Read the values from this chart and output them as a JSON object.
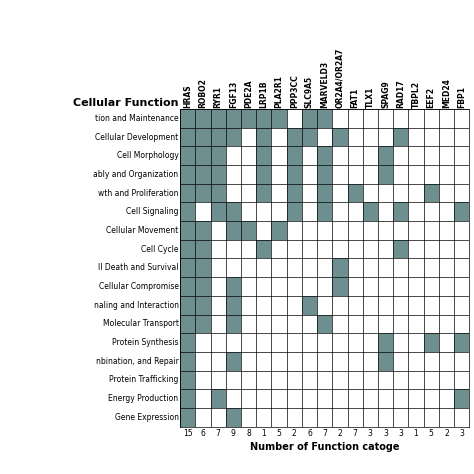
{
  "genes": [
    "HRAS",
    "ROBO2",
    "RYR1",
    "FGF13",
    "PDE2A",
    "LRP1B",
    "PLA2R1",
    "PPP3CC",
    "SLC9A5",
    "MARVELD3",
    "OR2A4/OR2A7",
    "FAT1",
    "TLX1",
    "SPAG9",
    "RAD17",
    "TBPL2",
    "EEF2",
    "MED24",
    "FBP1"
  ],
  "gene_counts": [
    "15",
    "6",
    "7",
    "9",
    "8",
    "1",
    "5",
    "2",
    "6",
    "7",
    "2",
    "7",
    "3",
    "3",
    "3",
    "1",
    "5",
    "2",
    "3"
  ],
  "function_labels": [
    "tion and Maintenance",
    "Cellular Development",
    "Cell Morphology",
    "ably and Organization",
    "wth and Proliferation",
    "Cell Signaling",
    "Cellular Movement",
    "Cell Cycle",
    "ll Death and Survival",
    "Cellular Compromise",
    "naling and Interaction",
    "Molecular Transport",
    "Protein Synthesis",
    "nbination, and Repair",
    "Protein Trafficking",
    "Energy Production",
    "Gene Expression"
  ],
  "filled": [
    [
      1,
      1,
      1,
      1,
      1,
      1,
      1,
      0,
      1,
      1,
      0,
      0,
      0,
      0,
      0,
      0,
      0,
      0,
      0
    ],
    [
      1,
      1,
      1,
      1,
      0,
      1,
      0,
      1,
      1,
      0,
      1,
      0,
      0,
      0,
      1,
      0,
      0,
      0,
      0
    ],
    [
      1,
      1,
      1,
      0,
      0,
      1,
      0,
      1,
      0,
      1,
      0,
      0,
      0,
      1,
      0,
      0,
      0,
      0,
      0
    ],
    [
      1,
      1,
      1,
      0,
      0,
      1,
      0,
      1,
      0,
      1,
      0,
      0,
      0,
      1,
      0,
      0,
      0,
      0,
      0
    ],
    [
      1,
      1,
      1,
      0,
      0,
      1,
      0,
      1,
      0,
      1,
      0,
      1,
      0,
      0,
      0,
      0,
      1,
      0,
      0
    ],
    [
      1,
      0,
      1,
      1,
      0,
      0,
      0,
      1,
      0,
      1,
      0,
      0,
      1,
      0,
      1,
      0,
      0,
      0,
      1
    ],
    [
      1,
      1,
      0,
      1,
      1,
      0,
      1,
      0,
      0,
      0,
      0,
      0,
      0,
      0,
      0,
      0,
      0,
      0,
      0
    ],
    [
      1,
      1,
      0,
      0,
      0,
      1,
      0,
      0,
      0,
      0,
      0,
      0,
      0,
      0,
      1,
      0,
      0,
      0,
      0
    ],
    [
      1,
      1,
      0,
      0,
      0,
      0,
      0,
      0,
      0,
      0,
      1,
      0,
      0,
      0,
      0,
      0,
      0,
      0,
      0
    ],
    [
      1,
      1,
      0,
      1,
      0,
      0,
      0,
      0,
      0,
      0,
      1,
      0,
      0,
      0,
      0,
      0,
      0,
      0,
      0
    ],
    [
      1,
      1,
      0,
      1,
      0,
      0,
      0,
      0,
      1,
      0,
      0,
      0,
      0,
      0,
      0,
      0,
      0,
      0,
      0
    ],
    [
      1,
      1,
      0,
      1,
      0,
      0,
      0,
      0,
      0,
      1,
      0,
      0,
      0,
      0,
      0,
      0,
      0,
      0,
      0
    ],
    [
      1,
      0,
      0,
      0,
      0,
      0,
      0,
      0,
      0,
      0,
      0,
      0,
      0,
      1,
      0,
      0,
      1,
      0,
      1
    ],
    [
      1,
      0,
      0,
      1,
      0,
      0,
      0,
      0,
      0,
      0,
      0,
      0,
      0,
      1,
      0,
      0,
      0,
      0,
      0
    ],
    [
      1,
      0,
      0,
      0,
      0,
      0,
      0,
      0,
      0,
      0,
      0,
      0,
      0,
      0,
      0,
      0,
      0,
      0,
      0
    ],
    [
      1,
      0,
      1,
      0,
      0,
      0,
      0,
      0,
      0,
      0,
      0,
      0,
      0,
      0,
      0,
      0,
      0,
      0,
      1
    ],
    [
      1,
      0,
      0,
      1,
      0,
      0,
      0,
      0,
      0,
      0,
      0,
      0,
      0,
      0,
      0,
      0,
      0,
      0,
      0
    ]
  ],
  "fill_color": "#6e8f8f",
  "xlabel": "Number of Function catoge",
  "header_label": "Cellular Function",
  "cell_fontsize": 5.5,
  "header_fontsize": 8,
  "count_fontsize": 5.5,
  "gene_fontsize": 5.5
}
